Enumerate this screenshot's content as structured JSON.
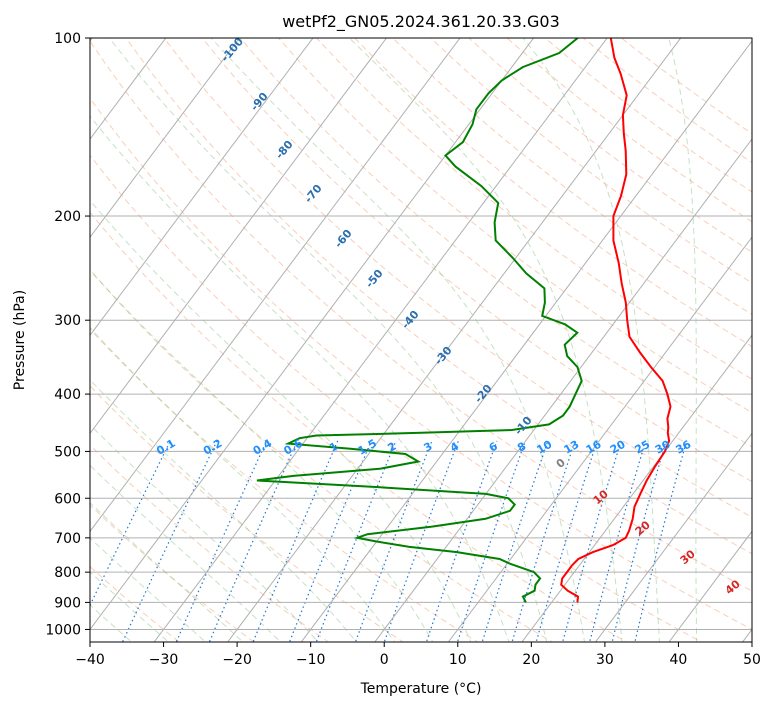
{
  "chart_data": {
    "type": "line",
    "title": "wetPf2_GN05.2024.361.20.33.G03",
    "xlabel": "Temperature (°C)",
    "ylabel": "Pressure (hPa)",
    "xlim": [
      -40,
      50
    ],
    "ylim": [
      1050,
      100
    ],
    "y_scale": "log",
    "grid": true,
    "x_ticks": [
      -40,
      -30,
      -20,
      -10,
      0,
      10,
      20,
      30,
      40,
      50
    ],
    "y_ticks": [
      100,
      200,
      300,
      400,
      500,
      600,
      700,
      800,
      900,
      1000
    ],
    "series": [
      {
        "role": "temperature",
        "color": "#ff0000",
        "points": [
          {
            "p": 900,
            "t": 23.5
          },
          {
            "p": 880,
            "t": 23.0
          },
          {
            "p": 860,
            "t": 21.0
          },
          {
            "p": 840,
            "t": 19.5
          },
          {
            "p": 820,
            "t": 19.0
          },
          {
            "p": 800,
            "t": 19.0
          },
          {
            "p": 780,
            "t": 19.0
          },
          {
            "p": 760,
            "t": 19.2
          },
          {
            "p": 740,
            "t": 20.5
          },
          {
            "p": 720,
            "t": 22.5
          },
          {
            "p": 700,
            "t": 23.5
          },
          {
            "p": 680,
            "t": 23.2
          },
          {
            "p": 650,
            "t": 22.5
          },
          {
            "p": 620,
            "t": 21.5
          },
          {
            "p": 590,
            "t": 21.0
          },
          {
            "p": 560,
            "t": 20.5
          },
          {
            "p": 530,
            "t": 20.2
          },
          {
            "p": 500,
            "t": 20.0
          },
          {
            "p": 480,
            "t": 19.5
          },
          {
            "p": 465,
            "t": 18.5
          },
          {
            "p": 455,
            "t": 18.0
          },
          {
            "p": 440,
            "t": 17.0
          },
          {
            "p": 420,
            "t": 16.2
          },
          {
            "p": 400,
            "t": 14.5
          },
          {
            "p": 380,
            "t": 12.5
          },
          {
            "p": 360,
            "t": 9.5
          },
          {
            "p": 340,
            "t": 6.5
          },
          {
            "p": 320,
            "t": 3.5
          },
          {
            "p": 300,
            "t": 1.5
          },
          {
            "p": 280,
            "t": -0.5
          },
          {
            "p": 260,
            "t": -3.0
          },
          {
            "p": 240,
            "t": -5.5
          },
          {
            "p": 220,
            "t": -8.5
          },
          {
            "p": 200,
            "t": -11.0
          },
          {
            "p": 185,
            "t": -12.0
          },
          {
            "p": 170,
            "t": -13.5
          },
          {
            "p": 155,
            "t": -16.0
          },
          {
            "p": 145,
            "t": -18.0
          },
          {
            "p": 135,
            "t": -20.0
          },
          {
            "p": 125,
            "t": -21.5
          },
          {
            "p": 115,
            "t": -24.5
          },
          {
            "p": 108,
            "t": -27.0
          },
          {
            "p": 100,
            "t": -29.5
          }
        ]
      },
      {
        "role": "dewpoint",
        "color": "#008000",
        "points": [
          {
            "p": 900,
            "t": 16.5
          },
          {
            "p": 880,
            "t": 15.5
          },
          {
            "p": 860,
            "t": 16.5
          },
          {
            "p": 840,
            "t": 16.0
          },
          {
            "p": 820,
            "t": 16.0
          },
          {
            "p": 800,
            "t": 14.5
          },
          {
            "p": 775,
            "t": 10.5
          },
          {
            "p": 760,
            "t": 8.5
          },
          {
            "p": 740,
            "t": 2.0
          },
          {
            "p": 725,
            "t": -5.0
          },
          {
            "p": 710,
            "t": -10.0
          },
          {
            "p": 700,
            "t": -13.0
          },
          {
            "p": 690,
            "t": -12.0
          },
          {
            "p": 670,
            "t": -4.0
          },
          {
            "p": 650,
            "t": 2.5
          },
          {
            "p": 630,
            "t": 5.0
          },
          {
            "p": 615,
            "t": 5.0
          },
          {
            "p": 600,
            "t": 3.5
          },
          {
            "p": 590,
            "t": 0.0
          },
          {
            "p": 575,
            "t": -15.0
          },
          {
            "p": 560,
            "t": -32.5
          },
          {
            "p": 550,
            "t": -28.0
          },
          {
            "p": 535,
            "t": -17.0
          },
          {
            "p": 520,
            "t": -12.5
          },
          {
            "p": 505,
            "t": -15.0
          },
          {
            "p": 495,
            "t": -23.0
          },
          {
            "p": 485,
            "t": -32.0
          },
          {
            "p": 475,
            "t": -31.0
          },
          {
            "p": 470,
            "t": -29.0
          },
          {
            "p": 465,
            "t": -15.0
          },
          {
            "p": 460,
            "t": -3.0
          },
          {
            "p": 450,
            "t": 1.5
          },
          {
            "p": 435,
            "t": 2.5
          },
          {
            "p": 420,
            "t": 2.5
          },
          {
            "p": 400,
            "t": 2.0
          },
          {
            "p": 380,
            "t": 1.5
          },
          {
            "p": 360,
            "t": -0.5
          },
          {
            "p": 345,
            "t": -3.0
          },
          {
            "p": 330,
            "t": -4.5
          },
          {
            "p": 315,
            "t": -4.0
          },
          {
            "p": 305,
            "t": -6.5
          },
          {
            "p": 295,
            "t": -10.5
          },
          {
            "p": 280,
            "t": -11.5
          },
          {
            "p": 265,
            "t": -13.0
          },
          {
            "p": 250,
            "t": -17.0
          },
          {
            "p": 235,
            "t": -20.5
          },
          {
            "p": 220,
            "t": -24.5
          },
          {
            "p": 205,
            "t": -26.5
          },
          {
            "p": 190,
            "t": -28.0
          },
          {
            "p": 178,
            "t": -32.0
          },
          {
            "p": 165,
            "t": -37.5
          },
          {
            "p": 158,
            "t": -40.0
          },
          {
            "p": 150,
            "t": -39.0
          },
          {
            "p": 140,
            "t": -39.5
          },
          {
            "p": 132,
            "t": -40.5
          },
          {
            "p": 124,
            "t": -40.5
          },
          {
            "p": 118,
            "t": -40.0
          },
          {
            "p": 112,
            "t": -38.5
          },
          {
            "p": 106,
            "t": -35.0
          },
          {
            "p": 100,
            "t": -34.0
          }
        ]
      }
    ],
    "dry_adiabat_labels": [
      "-100",
      "-90",
      "-80",
      "-70",
      "-60",
      "-50",
      "-40",
      "-30",
      "-20",
      "-10"
    ],
    "mixing_ratio_labels": [
      "0.1",
      "0.2",
      "0.4",
      "0.6",
      "1",
      "1.5",
      "2",
      "3",
      "4",
      "6",
      "8",
      "10",
      "13",
      "16",
      "20",
      "25",
      "30",
      "36"
    ],
    "moist_adiabat_labels": [
      "0",
      "10",
      "20",
      "30",
      "40"
    ]
  }
}
